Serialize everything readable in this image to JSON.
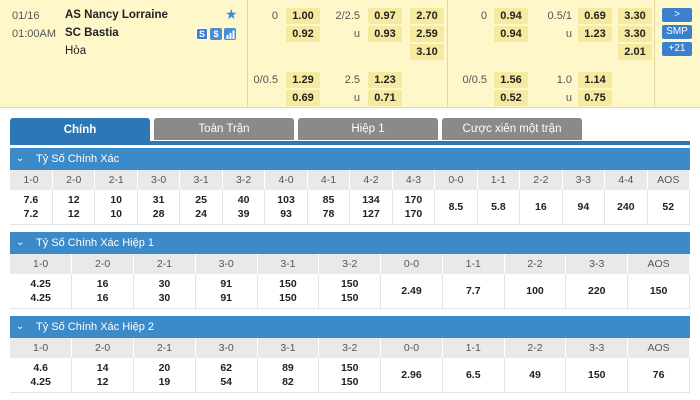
{
  "match": {
    "date": "01/16",
    "time": "01:00AM",
    "home": "AS Nancy Lorraine",
    "away": "SC Bastia",
    "draw": "Hòa",
    "ft_handicap": {
      "line": "0",
      "home": "1.00",
      "away": "0.92"
    },
    "ft_ou": {
      "line": "2/2.5",
      "over": "0.97",
      "under": "0.93"
    },
    "ft_1x2": {
      "home": "2.70",
      "away": "2.59",
      "draw": "3.10"
    },
    "ft_handicap2": {
      "line": "0/0.5",
      "home": "1.29",
      "away": "0.69"
    },
    "ft_ou2": {
      "line": "2.5",
      "over": "1.23",
      "under": "0.71"
    },
    "h1_handicap": {
      "line": "0",
      "home": "0.94",
      "away": "0.94"
    },
    "h1_ou": {
      "line": "0.5/1",
      "over": "0.69",
      "under": "1.23",
      "u": "u"
    },
    "h1_1x2": {
      "home": "3.30",
      "away": "3.30",
      "draw": "2.01"
    },
    "h1_handicap2": {
      "line": "0/0.5",
      "home": "1.56",
      "away": "0.52"
    },
    "h1_ou2": {
      "line": "1.0",
      "over": "1.14",
      "under": "0.75",
      "u": "u"
    },
    "ft_ou_u": "u",
    "ft_ou2_u": "u",
    "buttons": {
      "expand": ">",
      "smp": "SMP",
      "more": "+21"
    },
    "mini_icons": [
      "S",
      "$",
      "chart"
    ]
  },
  "tabs": [
    "Chính",
    "Toàn Trận",
    "Hiệp 1",
    "Cược xiên một trận"
  ],
  "sections": [
    {
      "title": "Tỷ Số Chính Xác",
      "headers": [
        "1-0",
        "2-0",
        "2-1",
        "3-0",
        "3-1",
        "3-2",
        "4-0",
        "4-1",
        "4-2",
        "4-3",
        "0-0",
        "1-1",
        "2-2",
        "3-3",
        "4-4",
        "AOS"
      ],
      "rows": [
        [
          "7.6",
          "12",
          "10",
          "31",
          "25",
          "40",
          "103",
          "85",
          "134",
          "170"
        ],
        [
          "7.2",
          "12",
          "10",
          "28",
          "24",
          "39",
          "93",
          "78",
          "127",
          "170"
        ]
      ],
      "single": [
        "8.5",
        "5.8",
        "16",
        "94",
        "240",
        "52"
      ]
    },
    {
      "title": "Tỷ Số Chính Xác Hiệp 1",
      "headers": [
        "1-0",
        "2-0",
        "2-1",
        "3-0",
        "3-1",
        "3-2",
        "0-0",
        "1-1",
        "2-2",
        "3-3",
        "AOS"
      ],
      "rows": [
        [
          "4.25",
          "16",
          "30",
          "91",
          "150",
          "150"
        ],
        [
          "4.25",
          "16",
          "30",
          "91",
          "150",
          "150"
        ]
      ],
      "single": [
        "2.49",
        "7.7",
        "100",
        "220",
        "150"
      ]
    },
    {
      "title": "Tỷ Số Chính Xác Hiệp 2",
      "headers": [
        "1-0",
        "2-0",
        "2-1",
        "3-0",
        "3-1",
        "3-2",
        "0-0",
        "1-1",
        "2-2",
        "3-3",
        "AOS"
      ],
      "rows": [
        [
          "4.6",
          "14",
          "20",
          "62",
          "89",
          "150"
        ],
        [
          "4.25",
          "12",
          "19",
          "54",
          "82",
          "150"
        ]
      ],
      "single": [
        "2.96",
        "6.5",
        "49",
        "150",
        "76"
      ]
    }
  ]
}
